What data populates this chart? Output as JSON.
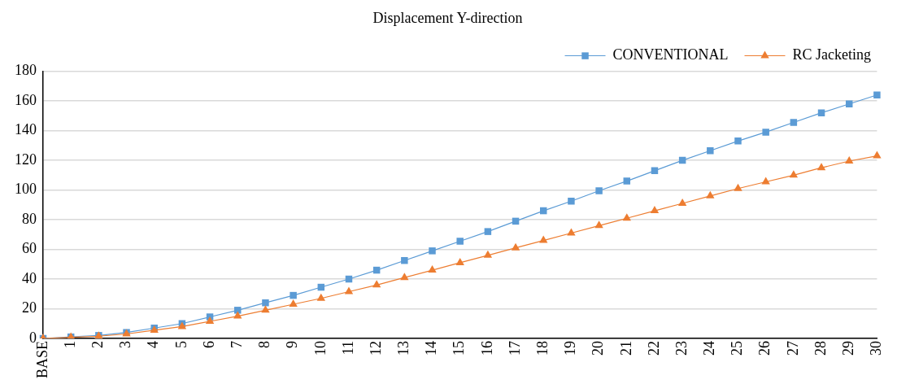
{
  "chart_data": {
    "type": "line",
    "title": "Displacement Y-direction",
    "categories": [
      "BASE",
      "1",
      "2",
      "3",
      "4",
      "5",
      "6",
      "7",
      "8",
      "9",
      "10",
      "11",
      "12",
      "13",
      "14",
      "15",
      "16",
      "17",
      "18",
      "19",
      "20",
      "21",
      "22",
      "23",
      "24",
      "25",
      "26",
      "27",
      "28",
      "29",
      "30"
    ],
    "series": [
      {
        "name": "CONVENTIONAL",
        "color": "#5b9bd5",
        "marker": "square",
        "values": [
          0,
          1,
          2,
          4,
          7,
          10,
          14.5,
          19,
          24,
          29,
          34.5,
          40,
          46,
          52.5,
          59,
          65.5,
          72,
          79,
          86,
          92.5,
          99.5,
          106,
          113,
          120,
          126.5,
          133,
          139,
          145.5,
          152,
          158,
          164
        ]
      },
      {
        "name": "RC Jacketing",
        "color": "#ed7d31",
        "marker": "triangle",
        "values": [
          0,
          0.8,
          1.5,
          3,
          5.5,
          8,
          11.5,
          15,
          19,
          23,
          27,
          31.5,
          36,
          41,
          46,
          51,
          56,
          61,
          66,
          71,
          76,
          81,
          86,
          91,
          96,
          101,
          105.5,
          110,
          115,
          119.5,
          123
        ]
      }
    ],
    "ylim": [
      0,
      180
    ],
    "yticks": [
      0,
      20,
      40,
      60,
      80,
      100,
      120,
      140,
      160,
      180
    ],
    "grid": "y",
    "legend": "top right",
    "line_style": "solid"
  }
}
